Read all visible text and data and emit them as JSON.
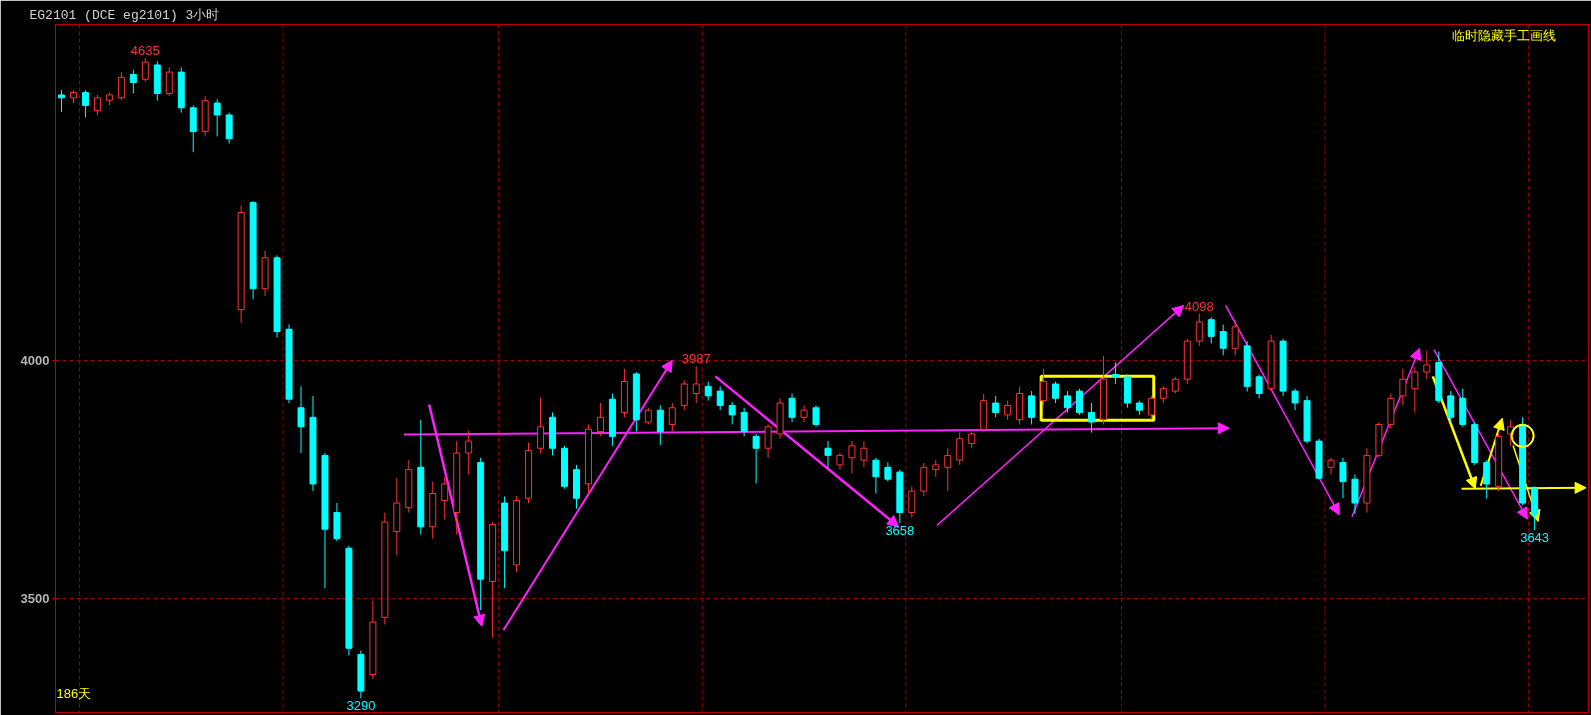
{
  "chart_data": {
    "type": "candlestick",
    "title": "EG2101  (DCE eg2101)  3小时",
    "categories": [
      null,
      null,
      null,
      null,
      null,
      null,
      null,
      null,
      null,
      null,
      null,
      null,
      null,
      null,
      null,
      null,
      null,
      null,
      null,
      null,
      null,
      null,
      null,
      null,
      null,
      null,
      null,
      null,
      null,
      null,
      null,
      null,
      null,
      null,
      null,
      null,
      null,
      null,
      null,
      null,
      null,
      null,
      null,
      null,
      null,
      null,
      null,
      null,
      null,
      null,
      null,
      null,
      null,
      null,
      null,
      null,
      null,
      null,
      null,
      null,
      null,
      null,
      null,
      null,
      null,
      null,
      null,
      null,
      null,
      null,
      null,
      null,
      null,
      null,
      null,
      null,
      null,
      null,
      null,
      null,
      null,
      null,
      null,
      null,
      null,
      null,
      null,
      null,
      null,
      null,
      null,
      null,
      null,
      null,
      null,
      null,
      null,
      null,
      null,
      null,
      null,
      null,
      null,
      null,
      null,
      null,
      null,
      null,
      null,
      null,
      null,
      null,
      null,
      null,
      null,
      null,
      null,
      null,
      null,
      null,
      null,
      null,
      null,
      null,
      null,
      null,
      null,
      null
    ],
    "ohlc": [
      [
        4557,
        4567,
        4521,
        4551
      ],
      [
        4551,
        4567,
        4540,
        4562
      ],
      [
        4562,
        4567,
        4510,
        4535
      ],
      [
        4524,
        4557,
        4514,
        4551
      ],
      [
        4546,
        4562,
        4535,
        4557
      ],
      [
        4551,
        4605,
        4546,
        4594
      ],
      [
        4600,
        4610,
        4560,
        4583
      ],
      [
        4590,
        4635,
        4585,
        4626
      ],
      [
        4620,
        4628,
        4545,
        4560
      ],
      [
        4560,
        4615,
        4555,
        4605
      ],
      [
        4605,
        4615,
        4520,
        4530
      ],
      [
        4530,
        4535,
        4437,
        4480
      ],
      [
        4480,
        4555,
        4470,
        4545
      ],
      [
        4540,
        4548,
        4470,
        4515
      ],
      [
        4515,
        4520,
        4455,
        4465
      ],
      [
        4106,
        4325,
        4078,
        4310
      ],
      [
        4331,
        4334,
        4128,
        4150
      ],
      [
        4150,
        4230,
        4135,
        4215
      ],
      [
        4215,
        4220,
        4048,
        4060
      ],
      [
        4065,
        4075,
        3910,
        3918
      ],
      [
        3900,
        3945,
        3805,
        3860
      ],
      [
        3880,
        3925,
        3725,
        3740
      ],
      [
        3800,
        3805,
        3521,
        3645
      ],
      [
        3680,
        3700,
        3620,
        3625
      ],
      [
        3605,
        3610,
        3380,
        3395
      ],
      [
        3382,
        3390,
        3290,
        3305
      ],
      [
        3340,
        3495,
        3330,
        3450
      ],
      [
        3460,
        3680,
        3445,
        3660
      ],
      [
        3640,
        3752,
        3590,
        3700
      ],
      [
        3690,
        3790,
        3680,
        3770
      ],
      [
        3775,
        3875,
        3634,
        3650
      ],
      [
        3650,
        3745,
        3625,
        3720
      ],
      [
        3705,
        3755,
        3665,
        3740
      ],
      [
        3680,
        3830,
        3634,
        3805
      ],
      [
        3805,
        3852,
        3760,
        3830
      ],
      [
        3785,
        3795,
        3475,
        3540
      ],
      [
        3535,
        3660,
        3417,
        3655
      ],
      [
        3700,
        3714,
        3521,
        3600
      ],
      [
        3570,
        3715,
        3555,
        3705
      ],
      [
        3710,
        3827,
        3700,
        3810
      ],
      [
        3815,
        3921,
        3805,
        3860
      ],
      [
        3880,
        3890,
        3800,
        3815
      ],
      [
        3815,
        3820,
        3730,
        3735
      ],
      [
        3770,
        3780,
        3688,
        3710
      ],
      [
        3740,
        3865,
        3720,
        3855
      ],
      [
        3850,
        3910,
        3840,
        3880
      ],
      [
        3918,
        3930,
        3820,
        3840
      ],
      [
        3890,
        3982,
        3880,
        3955
      ],
      [
        3971,
        3975,
        3850,
        3875
      ],
      [
        3870,
        3900,
        3865,
        3895
      ],
      [
        3895,
        3905,
        3822,
        3850
      ],
      [
        3865,
        3910,
        3850,
        3900
      ],
      [
        3905,
        3958,
        3895,
        3950
      ],
      [
        3930,
        3987,
        3910,
        3950
      ],
      [
        3945,
        3955,
        3915,
        3925
      ],
      [
        3935,
        3945,
        3895,
        3905
      ],
      [
        3905,
        3912,
        3865,
        3885
      ],
      [
        3890,
        3900,
        3840,
        3850
      ],
      [
        3840,
        3845,
        3741,
        3815
      ],
      [
        3815,
        3865,
        3795,
        3860
      ],
      [
        3845,
        3920,
        3835,
        3910
      ],
      [
        3920,
        3930,
        3870,
        3880
      ],
      [
        3880,
        3905,
        3870,
        3895
      ],
      [
        3900,
        3905,
        3860,
        3865
      ],
      [
        3815,
        3830,
        3773,
        3800
      ],
      [
        3780,
        3805,
        3770,
        3800
      ],
      [
        3795,
        3830,
        3762,
        3820
      ],
      [
        3790,
        3830,
        3775,
        3815
      ],
      [
        3790,
        3795,
        3720,
        3755
      ],
      [
        3775,
        3785,
        3745,
        3750
      ],
      [
        3765,
        3770,
        3658,
        3680
      ],
      [
        3680,
        3735,
        3670,
        3725
      ],
      [
        3725,
        3784,
        3715,
        3775
      ],
      [
        3770,
        3790,
        3755,
        3780
      ],
      [
        3775,
        3815,
        3725,
        3800
      ],
      [
        3790,
        3848,
        3780,
        3835
      ],
      [
        3825,
        3850,
        3815,
        3845
      ],
      [
        3855,
        3929,
        3850,
        3915
      ],
      [
        3910,
        3925,
        3880,
        3890
      ],
      [
        3885,
        3915,
        3875,
        3905
      ],
      [
        3875,
        3945,
        3865,
        3930
      ],
      [
        3925,
        3935,
        3865,
        3880
      ],
      [
        3915,
        3982,
        3905,
        3955
      ],
      [
        3950,
        3955,
        3910,
        3920
      ],
      [
        3925,
        3935,
        3890,
        3900
      ],
      [
        3935,
        3940,
        3885,
        3890
      ],
      [
        3890,
        3910,
        3848,
        3870
      ],
      [
        3875,
        4009,
        3865,
        3960
      ],
      [
        3970,
        3995,
        3950,
        3965
      ],
      [
        3965,
        3970,
        3900,
        3910
      ],
      [
        3910,
        3915,
        3885,
        3895
      ],
      [
        3885,
        3925,
        3875,
        3920
      ],
      [
        3920,
        3945,
        3910,
        3940
      ],
      [
        3935,
        3965,
        3930,
        3960
      ],
      [
        3960,
        4045,
        3950,
        4040
      ],
      [
        4040,
        4098,
        4030,
        4080
      ],
      [
        4085,
        4090,
        4035,
        4050
      ],
      [
        4060,
        4075,
        4010,
        4025
      ],
      [
        4025,
        4085,
        4010,
        4070
      ],
      [
        4030,
        4040,
        3934,
        3945
      ],
      [
        3965,
        3970,
        3920,
        3930
      ],
      [
        3940,
        4053,
        3935,
        4040
      ],
      [
        4040,
        4045,
        3925,
        3935
      ],
      [
        3935,
        3940,
        3895,
        3910
      ],
      [
        3915,
        3925,
        3825,
        3830
      ],
      [
        3830,
        3835,
        3750,
        3752
      ],
      [
        3775,
        3795,
        3760,
        3790
      ],
      [
        3785,
        3795,
        3710,
        3745
      ],
      [
        3750,
        3760,
        3677,
        3700
      ],
      [
        3700,
        3815,
        3680,
        3800
      ],
      [
        3800,
        3870,
        3795,
        3865
      ],
      [
        3865,
        3930,
        3855,
        3920
      ],
      [
        3925,
        3982,
        3905,
        3960
      ],
      [
        3940,
        3985,
        3890,
        3975
      ],
      [
        3975,
        4020,
        3960,
        3990
      ],
      [
        3995,
        4018,
        3910,
        3915
      ],
      [
        3925,
        3935,
        3870,
        3880
      ],
      [
        3920,
        3940,
        3860,
        3865
      ],
      [
        3865,
        3870,
        3780,
        3785
      ],
      [
        3785,
        3790,
        3709,
        3740
      ],
      [
        3735,
        3850,
        3725,
        3840
      ],
      [
        3845,
        3875,
        3820,
        3860
      ],
      [
        3865,
        3880,
        3695,
        3700
      ],
      [
        3730,
        3735,
        3643,
        3675
      ],
      null,
      null,
      null,
      null
    ],
    "colors": [
      "#00ffff",
      "#ff3232",
      "#00ffff",
      "#ff3232",
      "#ff3232",
      "#ff3232",
      "#00ffff",
      "#ff3232",
      "#00ffff",
      "#ff3232",
      "#00ffff",
      "#00ffff",
      "#ff3232",
      "#00ffff",
      "#00ffff",
      "#ff3232",
      "#00ffff",
      "#ff3232",
      "#00ffff",
      "#00ffff",
      "#00ffff",
      "#00ffff",
      "#00ffff",
      "#00ffff",
      "#00ffff",
      "#00ffff",
      "#ff3232",
      "#ff3232",
      "#ff3232",
      "#ff3232",
      "#00ffff",
      "#ff3232",
      "#ff3232",
      "#ff3232",
      "#ff3232",
      "#00ffff",
      "#ff3232",
      "#00ffff",
      "#ff3232",
      "#ff3232",
      "#ff3232",
      "#00ffff",
      "#00ffff",
      "#00ffff",
      "#ff3232",
      "#ff3232",
      "#00ffff",
      "#ff3232",
      "#00ffff",
      "#ff3232",
      "#00ffff",
      "#ff3232",
      "#ff3232",
      "#ff3232",
      "#00ffff",
      "#00ffff",
      "#00ffff",
      "#00ffff",
      "#00ffff",
      "#ff3232",
      "#ff3232",
      "#00ffff",
      "#ff3232",
      "#00ffff",
      "#00ffff",
      "#ff3232",
      "#ff3232",
      "#ff3232",
      "#00ffff",
      "#00ffff",
      "#00ffff",
      "#ff3232",
      "#ff3232",
      "#ff3232",
      "#ff3232",
      "#ff3232",
      "#ff3232",
      "#ff3232",
      "#00ffff",
      "#ff3232",
      "#ff3232",
      "#00ffff",
      "#ff3232",
      "#00ffff",
      "#00ffff",
      "#00ffff",
      "#00ffff",
      "#ff3232",
      "#00ffff",
      "#00ffff",
      "#00ffff",
      "#ff3232",
      "#ff3232",
      "#ff3232",
      "#ff3232",
      "#ff3232",
      "#00ffff",
      "#00ffff",
      "#ff3232",
      "#00ffff",
      "#00ffff",
      "#ff3232",
      "#00ffff",
      "#00ffff",
      "#00ffff",
      "#00ffff",
      "#ff3232",
      "#00ffff",
      "#00ffff",
      "#ff3232",
      "#ff3232",
      "#ff3232",
      "#ff3232",
      "#ff3232",
      "#ff3232",
      "#00ffff",
      "#00ffff",
      "#00ffff",
      "#00ffff",
      "#00ffff",
      "#ff3232",
      "#ff3232",
      "#00ffff",
      "#00ffff",
      null,
      null,
      null,
      null
    ],
    "series": [
      {
        "type": "scatter",
        "color": "#ffff00",
        "marker": "circle",
        "values": [
          null,
          null,
          null,
          null,
          null,
          null,
          null,
          null,
          null,
          null,
          null,
          null,
          null,
          null,
          null,
          null,
          null,
          null,
          null,
          null,
          null,
          null,
          null,
          null,
          null,
          null,
          null,
          null,
          null,
          null,
          null,
          null,
          null,
          null,
          null,
          null,
          null,
          null,
          null,
          null,
          null,
          null,
          null,
          null,
          null,
          null,
          null,
          null,
          null,
          null,
          null,
          null,
          null,
          null,
          null,
          null,
          null,
          null,
          null,
          null,
          null,
          null,
          null,
          null,
          null,
          null,
          null,
          null,
          null,
          null,
          null,
          null,
          null,
          null,
          null,
          null,
          null,
          null,
          null,
          null,
          null,
          null,
          null,
          null,
          null,
          null,
          null,
          null,
          null,
          null,
          null,
          null,
          null,
          null,
          null,
          null,
          null,
          null,
          null,
          null,
          null,
          null,
          null,
          null,
          null,
          null,
          null,
          null,
          null,
          null,
          null,
          null,
          null,
          null,
          null,
          null,
          null,
          null,
          null,
          null,
          null,
          null,
          3841,
          null,
          null,
          null,
          null,
          null
        ]
      }
    ],
    "ylim": [
      3260,
      4705
    ],
    "yticks": [
      3500,
      4000
    ],
    "grid": "y",
    "tick_labels": "y",
    "annotations": [
      {
        "text": "4635",
        "y": 4635
      },
      {
        "text": "3290",
        "y": 3290
      },
      {
        "text": "3987",
        "y": 3987
      },
      {
        "text": "3658",
        "y": 3658
      },
      {
        "text": "4098",
        "y": 4098
      },
      {
        "text": "3643",
        "y": 3643
      },
      "临时隐藏手工画线",
      "186天"
    ]
  }
}
